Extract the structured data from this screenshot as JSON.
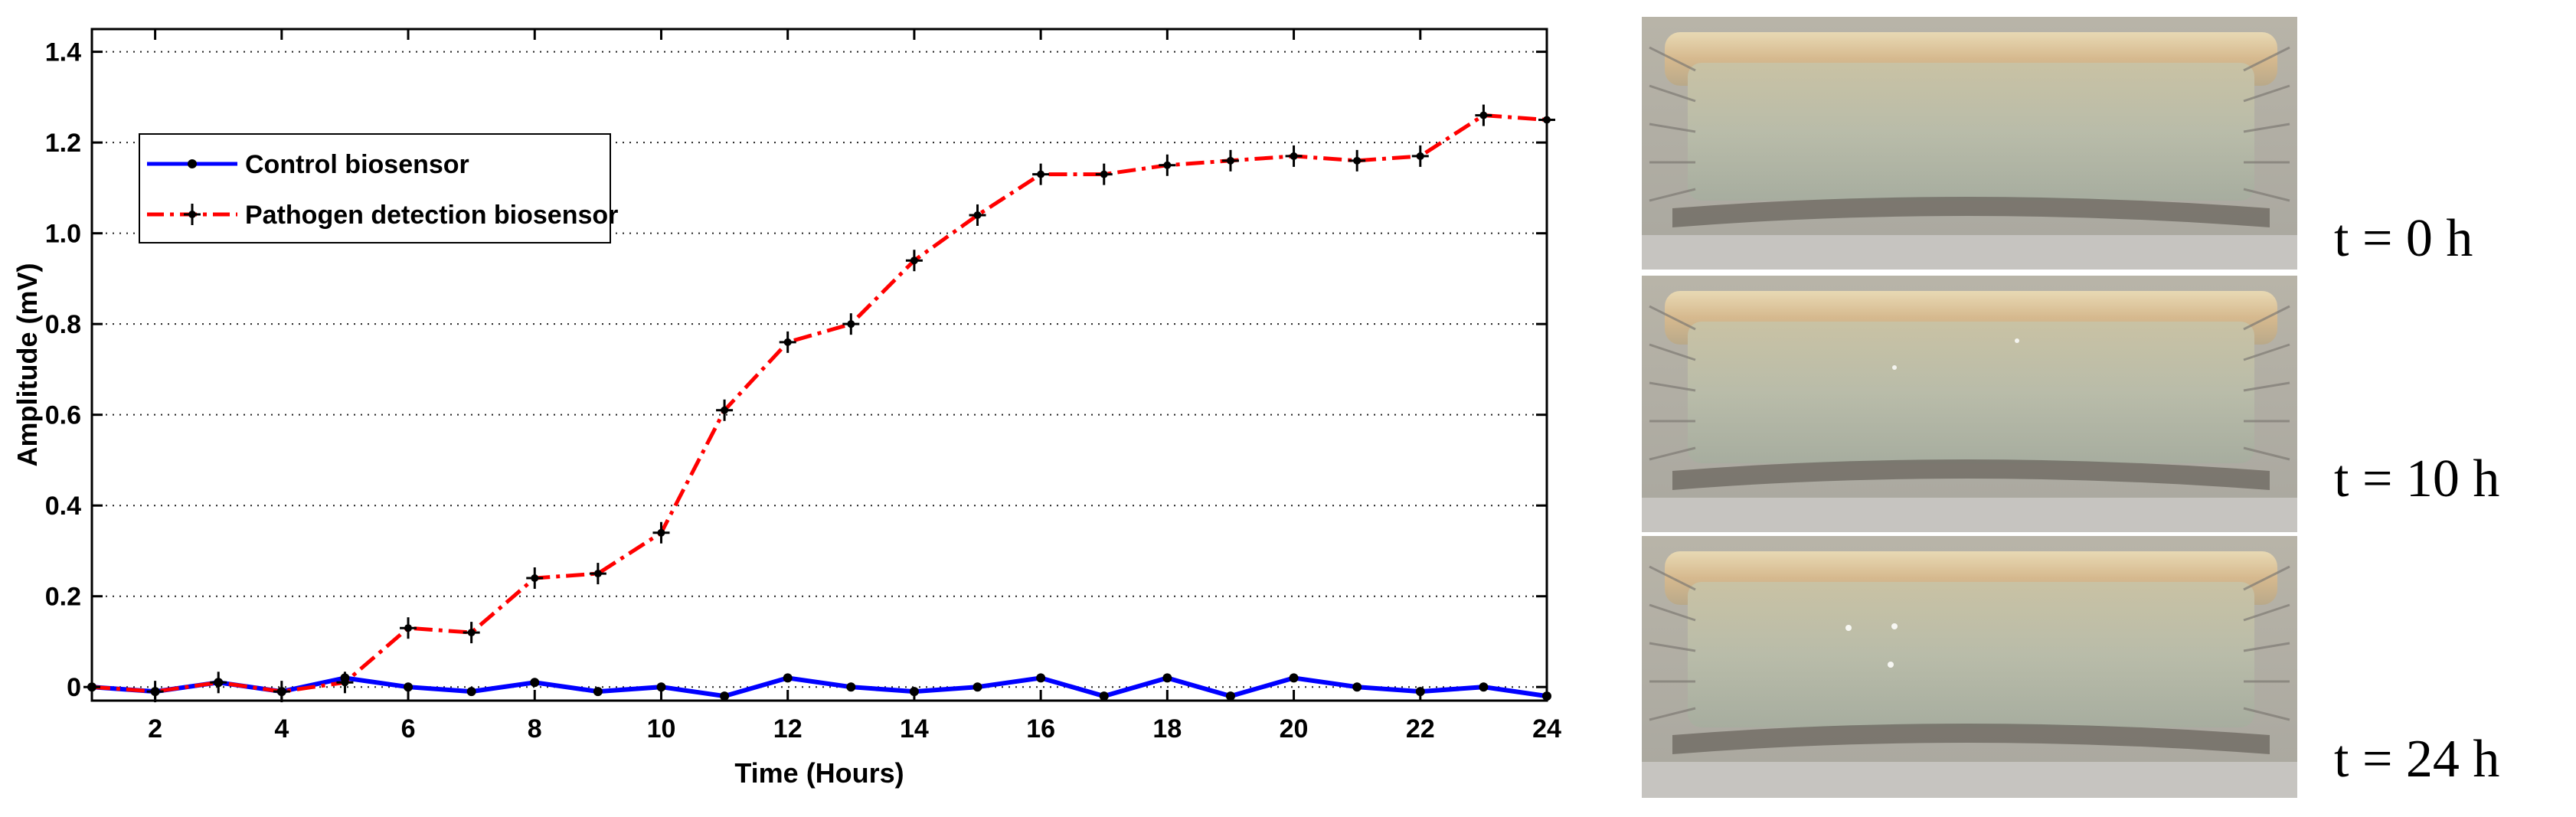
{
  "chart_data": {
    "type": "line",
    "xlabel": "Time (Hours)",
    "ylabel": "Amplitude (mV)",
    "xlim": [
      1,
      24
    ],
    "ylim": [
      -0.03,
      1.45
    ],
    "xticks": [
      2,
      4,
      6,
      8,
      10,
      12,
      14,
      16,
      18,
      20,
      22,
      24
    ],
    "yticks": [
      0,
      0.2,
      0.4,
      0.6,
      0.8,
      1.0,
      1.2,
      1.4
    ],
    "ytick_labels": [
      "0",
      "0.2",
      "0.4",
      "0.6",
      "0.8",
      "1.0",
      "1.2",
      "1.4"
    ],
    "grid": "horizontal dotted",
    "legend": "top-left",
    "x": [
      1,
      2,
      3,
      4,
      5,
      6,
      7,
      8,
      9,
      10,
      11,
      12,
      13,
      14,
      15,
      16,
      17,
      18,
      19,
      20,
      21,
      22,
      23,
      24
    ],
    "series": [
      {
        "name": "Control biosensor",
        "color": "#0000ff",
        "style": "solid",
        "marker": "dot",
        "values": [
          0.0,
          -0.01,
          0.01,
          -0.01,
          0.02,
          0.0,
          -0.01,
          0.01,
          -0.01,
          0.0,
          -0.02,
          0.02,
          0.0,
          -0.01,
          0.0,
          0.02,
          -0.02,
          0.02,
          -0.02,
          0.02,
          0.0,
          -0.01,
          0.0,
          -0.02
        ]
      },
      {
        "name": "Pathogen detection biosensor",
        "color": "#ff0000",
        "style": "dash-dot",
        "marker": "plus-star",
        "values": [
          0.0,
          -0.01,
          0.01,
          -0.01,
          0.01,
          0.13,
          0.12,
          0.24,
          0.25,
          0.34,
          0.61,
          0.76,
          0.8,
          0.94,
          1.04,
          1.13,
          1.13,
          1.15,
          1.16,
          1.17,
          1.16,
          1.17,
          1.26,
          1.25
        ]
      }
    ]
  },
  "photos": [
    {
      "time_label": "t = 0 h"
    },
    {
      "time_label": "t = 10 h"
    },
    {
      "time_label": "t = 24 h"
    }
  ]
}
